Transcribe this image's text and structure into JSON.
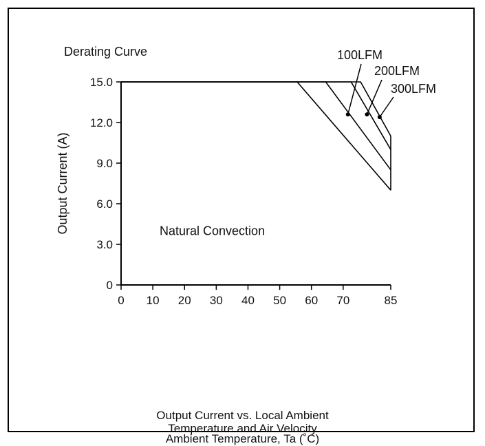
{
  "chart_data": {
    "type": "line",
    "title": "Derating Curve",
    "xlabel": "Ambient Temperature,  Ta (˚C)",
    "ylabel": "Output Current (A)",
    "caption_lines": [
      "Output Current vs. Local Ambient",
      "Temperature and Air Velocity"
    ],
    "xlim": [
      0,
      85
    ],
    "ylim": [
      0,
      15
    ],
    "x_ticks": [
      {
        "value": 0,
        "label": "0"
      },
      {
        "value": 10,
        "label": "10"
      },
      {
        "value": 20,
        "label": "20"
      },
      {
        "value": 30,
        "label": "30"
      },
      {
        "value": 40,
        "label": "40"
      },
      {
        "value": 50,
        "label": "50"
      },
      {
        "value": 60,
        "label": "60"
      },
      {
        "value": 70,
        "label": "70"
      },
      {
        "value": 85,
        "label": "85"
      }
    ],
    "y_ticks": [
      {
        "value": 0,
        "label": "0"
      },
      {
        "value": 3,
        "label": "3.0"
      },
      {
        "value": 6,
        "label": "6.0"
      },
      {
        "value": 9,
        "label": "9.0"
      },
      {
        "value": 12,
        "label": "12.0"
      },
      {
        "value": 15,
        "label": "15.0"
      }
    ],
    "series": [
      {
        "name": "Natural Convection",
        "points": [
          [
            0,
            15
          ],
          [
            55.5,
            15
          ],
          [
            85,
            7.0
          ]
        ]
      },
      {
        "name": "100LFM",
        "points": [
          [
            0,
            15
          ],
          [
            64.5,
            15
          ],
          [
            85,
            8.5
          ]
        ]
      },
      {
        "name": "200LFM",
        "points": [
          [
            0,
            15
          ],
          [
            72.5,
            15
          ],
          [
            85,
            10.0
          ]
        ]
      },
      {
        "name": "300LFM",
        "points": [
          [
            0,
            15
          ],
          [
            75.5,
            15
          ],
          [
            85,
            11.0
          ]
        ]
      }
    ],
    "annotations": [
      {
        "text": "100LFM",
        "point": [
          71.5,
          12.6
        ]
      },
      {
        "text": "200LFM",
        "point": [
          77.5,
          12.6
        ]
      },
      {
        "text": "300LFM",
        "point": [
          81.5,
          12.4
        ]
      },
      {
        "text": "Natural Convection",
        "point": [
          48.5,
          4.0
        ]
      }
    ],
    "grid": false
  }
}
